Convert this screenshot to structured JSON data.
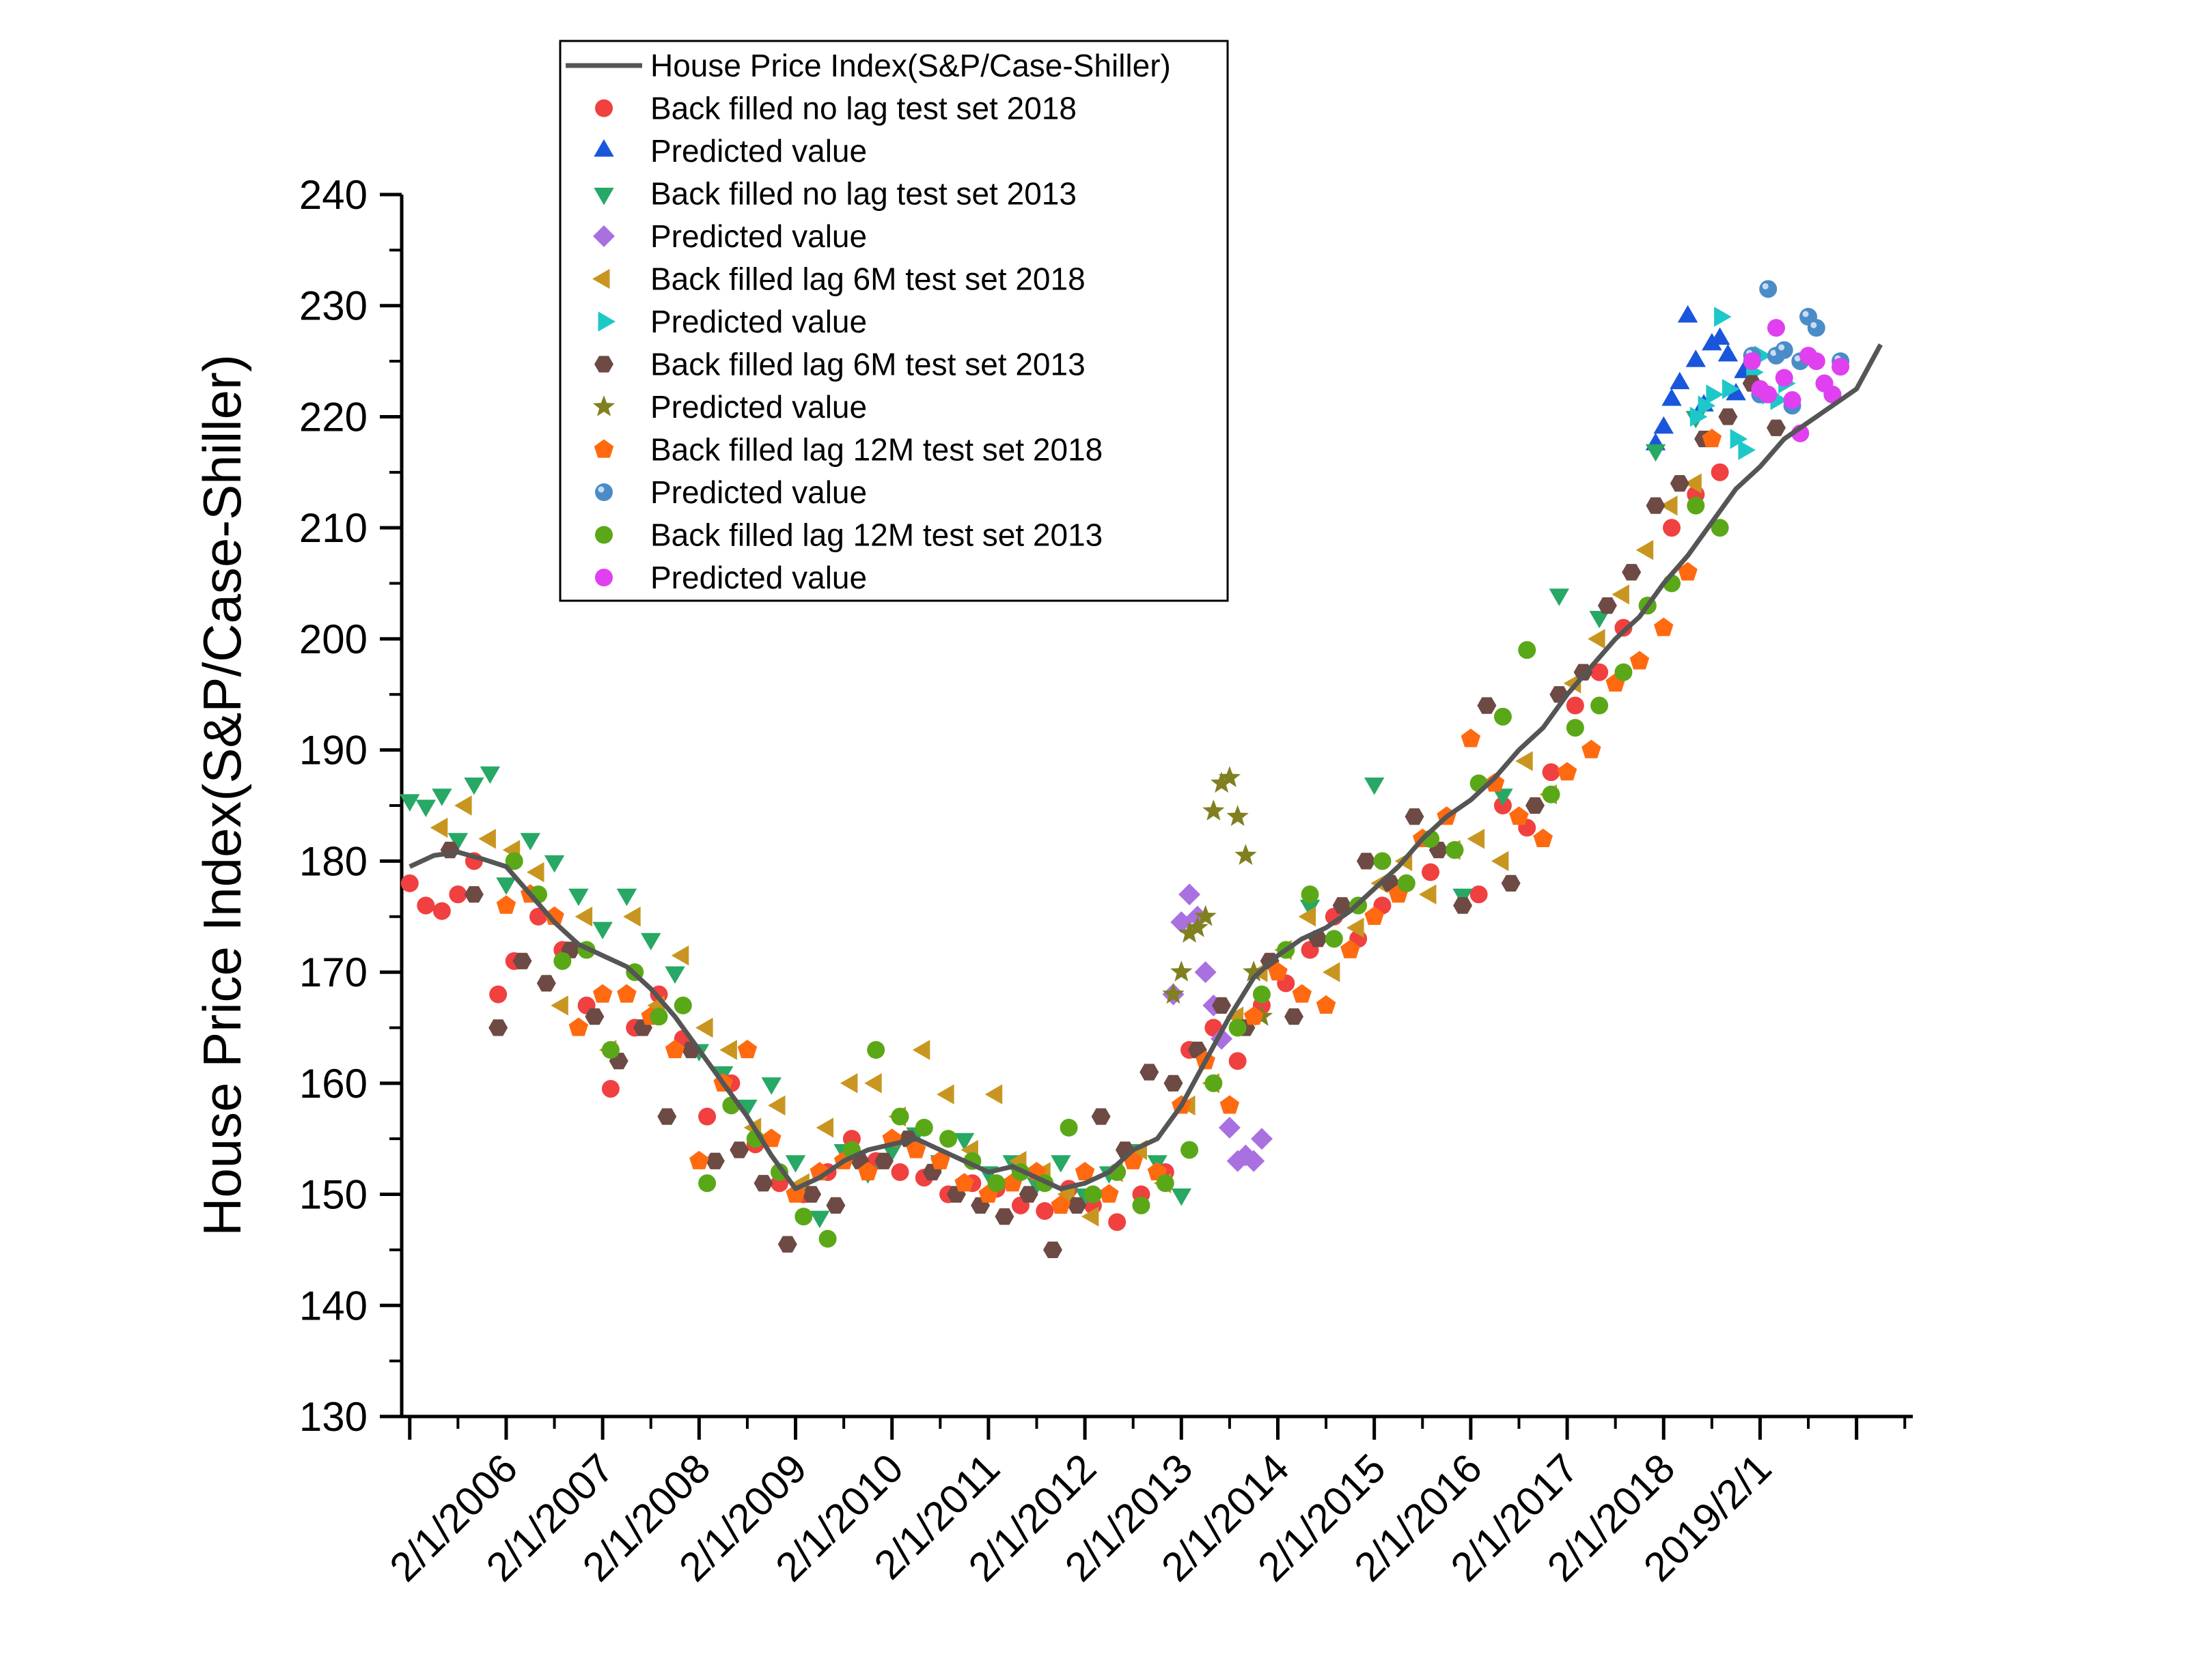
{
  "chart_data": {
    "type": "scatter",
    "title": "",
    "xlabel": "",
    "ylabel": "House Price Index(S&P/Case-Shiller)",
    "ylim": [
      130,
      240
    ],
    "yticks": [
      130,
      140,
      150,
      160,
      170,
      180,
      190,
      200,
      210,
      220,
      230,
      240
    ],
    "xlim": [
      "2005-01",
      "2020-09"
    ],
    "xticks": [
      {
        "date": "2006-02",
        "label": "2/1/2006"
      },
      {
        "date": "2007-02",
        "label": "2/1/2007"
      },
      {
        "date": "2008-02",
        "label": "2/1/2008"
      },
      {
        "date": "2009-02",
        "label": "2/1/2009"
      },
      {
        "date": "2010-02",
        "label": "2/1/2010"
      },
      {
        "date": "2011-02",
        "label": "2/1/2011"
      },
      {
        "date": "2012-02",
        "label": "2/1/2012"
      },
      {
        "date": "2013-02",
        "label": "2/1/2013"
      },
      {
        "date": "2014-02",
        "label": "2/1/2014"
      },
      {
        "date": "2015-02",
        "label": "2/1/2015"
      },
      {
        "date": "2016-02",
        "label": "2/1/2016"
      },
      {
        "date": "2017-02",
        "label": "2/1/2017"
      },
      {
        "date": "2018-02",
        "label": "2/1/2018"
      },
      {
        "date": "2019-02",
        "label": "2019/2/1"
      }
    ],
    "grid": false,
    "legend_position": "top-left",
    "series": [
      {
        "name": "House Price Index(S&P/Case-Shiller)",
        "marker": "line",
        "color": "#555555",
        "x": [
          "2005-02",
          "2005-05",
          "2005-08",
          "2005-11",
          "2006-02",
          "2006-05",
          "2006-08",
          "2006-11",
          "2007-02",
          "2007-05",
          "2007-08",
          "2007-11",
          "2008-02",
          "2008-05",
          "2008-08",
          "2008-11",
          "2009-02",
          "2009-05",
          "2009-08",
          "2009-11",
          "2010-02",
          "2010-05",
          "2010-08",
          "2010-11",
          "2011-02",
          "2011-05",
          "2011-08",
          "2011-11",
          "2012-02",
          "2012-05",
          "2012-08",
          "2012-11",
          "2013-02",
          "2013-05",
          "2013-08",
          "2013-11",
          "2014-02",
          "2014-05",
          "2014-08",
          "2014-11",
          "2015-02",
          "2015-05",
          "2015-08",
          "2015-11",
          "2016-02",
          "2016-05",
          "2016-08",
          "2016-11",
          "2017-02",
          "2017-05",
          "2017-08",
          "2017-11",
          "2018-02",
          "2018-05",
          "2018-08",
          "2018-11",
          "2019-02",
          "2019-05",
          "2019-08",
          "2019-11",
          "2020-02",
          "2020-05"
        ],
        "y": [
          179.5,
          180.5,
          180.8,
          180.2,
          179.5,
          177,
          174.5,
          172.5,
          171.5,
          170.5,
          168.5,
          166,
          163,
          160,
          157,
          153.5,
          150.5,
          151.5,
          153,
          154,
          154.5,
          155,
          154,
          153,
          152,
          152.5,
          151.5,
          150.5,
          151,
          152,
          154,
          155,
          158,
          162,
          166,
          169.5,
          171.5,
          173,
          174,
          175.5,
          177.5,
          179.5,
          182,
          184,
          185.5,
          187.5,
          190,
          192,
          195,
          197.5,
          200,
          202,
          205,
          207.5,
          210.5,
          213.5,
          215.5,
          218,
          219.5,
          221,
          222.5,
          226.5
        ]
      },
      {
        "name": "Back filled no lag test set 2018",
        "marker": "circle",
        "color": "#f04040",
        "x": [
          "2005-02",
          "2005-04",
          "2005-06",
          "2005-08",
          "2005-10",
          "2006-01",
          "2006-03",
          "2006-06",
          "2006-09",
          "2006-12",
          "2007-03",
          "2007-06",
          "2007-09",
          "2007-12",
          "2008-03",
          "2008-06",
          "2008-09",
          "2008-12",
          "2009-03",
          "2009-06",
          "2009-09",
          "2009-12",
          "2010-03",
          "2010-06",
          "2010-09",
          "2010-12",
          "2011-03",
          "2011-06",
          "2011-09",
          "2011-12",
          "2012-03",
          "2012-06",
          "2012-09",
          "2012-12",
          "2013-03",
          "2013-06",
          "2013-09",
          "2013-12",
          "2014-03",
          "2014-06",
          "2014-09",
          "2014-12",
          "2015-03",
          "2015-06",
          "2015-09",
          "2015-12",
          "2016-03",
          "2016-06",
          "2016-09",
          "2016-12",
          "2017-03",
          "2017-06",
          "2017-09",
          "2017-12",
          "2018-03",
          "2018-06",
          "2018-09"
        ],
        "y": [
          178,
          176,
          175.5,
          177,
          180,
          168,
          171,
          175,
          172,
          167,
          159.5,
          165,
          168,
          164,
          157,
          160,
          154.5,
          151,
          150,
          152,
          155,
          153,
          152,
          151.5,
          150,
          151,
          150.5,
          149,
          148.5,
          150.5,
          149,
          147.5,
          150,
          152,
          163,
          165,
          162,
          167,
          169,
          172,
          175,
          173,
          176,
          178,
          179,
          181,
          177,
          185,
          183,
          188,
          194,
          197,
          201,
          203,
          210,
          213,
          215
        ]
      },
      {
        "name": "Predicted value",
        "marker": "triangle-up",
        "color": "#1a56db",
        "x": [
          "2018-01",
          "2018-02",
          "2018-03",
          "2018-04",
          "2018-05",
          "2018-06",
          "2018-07",
          "2018-08",
          "2018-09",
          "2018-10",
          "2018-11",
          "2018-12"
        ],
        "y": [
          217.5,
          219,
          221.5,
          223,
          229,
          225,
          221,
          226.5,
          227,
          225.5,
          222,
          224
        ]
      },
      {
        "name": "Back filled no lag test set 2013",
        "marker": "triangle-down",
        "color": "#27a865",
        "x": [
          "2005-02",
          "2005-04",
          "2005-06",
          "2005-08",
          "2005-10",
          "2005-12",
          "2006-02",
          "2006-05",
          "2006-08",
          "2006-11",
          "2007-02",
          "2007-05",
          "2007-08",
          "2007-11",
          "2008-02",
          "2008-05",
          "2008-08",
          "2008-11",
          "2009-02",
          "2009-05",
          "2009-08",
          "2009-11",
          "2010-02",
          "2010-05",
          "2010-08",
          "2010-11",
          "2011-02",
          "2011-05",
          "2011-08",
          "2011-11",
          "2012-02",
          "2012-05",
          "2012-08",
          "2012-11",
          "2013-02",
          "2014-06",
          "2015-02",
          "2016-01",
          "2016-06",
          "2017-01",
          "2017-06",
          "2018-01",
          "2018-06"
        ],
        "y": [
          185.5,
          185,
          186,
          182,
          187,
          188,
          178,
          182,
          180,
          177,
          174,
          177,
          173,
          170,
          163,
          161,
          158,
          160,
          153,
          148,
          154,
          152,
          154,
          155.5,
          153,
          155,
          152,
          153,
          151,
          153,
          150,
          152,
          154,
          153,
          150,
          176,
          187,
          177,
          186,
          204,
          202,
          217,
          220
        ]
      },
      {
        "name": "Predicted value",
        "marker": "diamond",
        "color": "#a970e0",
        "x": [
          "2013-01",
          "2013-02",
          "2013-03",
          "2013-04",
          "2013-05",
          "2013-06",
          "2013-07",
          "2013-08",
          "2013-09",
          "2013-10",
          "2013-11",
          "2013-12"
        ],
        "y": [
          168,
          174.5,
          177,
          175,
          170,
          167,
          164,
          156,
          153,
          153.5,
          153,
          155
        ]
      },
      {
        "name": "Back filled lag 6M test set 2018",
        "marker": "triangle-left",
        "color": "#c89620",
        "x": [
          "2005-06",
          "2005-09",
          "2005-12",
          "2006-03",
          "2006-06",
          "2006-09",
          "2006-12",
          "2007-03",
          "2007-06",
          "2007-09",
          "2007-12",
          "2008-03",
          "2008-06",
          "2008-09",
          "2008-12",
          "2009-03",
          "2009-06",
          "2009-09",
          "2009-12",
          "2010-03",
          "2010-06",
          "2010-09",
          "2010-12",
          "2011-03",
          "2011-06",
          "2011-09",
          "2011-12",
          "2012-03",
          "2012-06",
          "2012-09",
          "2012-12",
          "2013-03",
          "2013-06",
          "2013-09",
          "2013-12",
          "2014-03",
          "2014-06",
          "2014-09",
          "2014-12",
          "2015-03",
          "2015-06",
          "2015-09",
          "2015-12",
          "2016-03",
          "2016-06",
          "2016-09",
          "2016-12",
          "2017-03",
          "2017-06",
          "2017-09",
          "2017-12",
          "2018-03",
          "2018-06"
        ],
        "y": [
          183,
          185,
          182,
          181,
          179,
          167,
          175,
          163,
          175,
          167,
          171.5,
          165,
          163,
          156,
          158,
          151,
          156,
          160,
          160,
          157,
          163,
          159,
          154,
          159,
          153,
          152,
          150,
          148,
          152,
          154,
          151,
          158,
          160,
          166,
          170,
          172,
          175,
          170,
          174,
          178,
          180,
          177,
          181,
          182,
          180,
          189,
          186,
          196,
          200,
          204,
          208,
          212,
          214
        ]
      },
      {
        "name": "Predicted value",
        "marker": "triangle-right",
        "color": "#1ec8c8",
        "x": [
          "2018-06",
          "2018-07",
          "2018-08",
          "2018-09",
          "2018-10",
          "2018-11",
          "2018-12",
          "2019-01",
          "2019-02",
          "2019-03",
          "2019-04",
          "2019-05"
        ],
        "y": [
          220,
          221,
          222,
          229,
          222.5,
          218,
          217,
          224,
          225.5,
          222,
          221.5,
          223
        ]
      },
      {
        "name": "Back filled lag 6M test set 2013",
        "marker": "hexagon",
        "color": "#6e4a44",
        "x": [
          "2005-07",
          "2005-10",
          "2006-01",
          "2006-04",
          "2006-07",
          "2006-10",
          "2007-01",
          "2007-04",
          "2007-07",
          "2007-10",
          "2008-01",
          "2008-04",
          "2008-07",
          "2008-10",
          "2009-01",
          "2009-04",
          "2009-07",
          "2009-10",
          "2010-01",
          "2010-04",
          "2010-07",
          "2010-10",
          "2011-01",
          "2011-04",
          "2011-07",
          "2011-10",
          "2012-01",
          "2012-04",
          "2012-07",
          "2012-10",
          "2013-01",
          "2013-04",
          "2013-07",
          "2013-10",
          "2014-01",
          "2014-04",
          "2014-07",
          "2014-10",
          "2015-01",
          "2015-04",
          "2015-07",
          "2015-10",
          "2016-01",
          "2016-04",
          "2016-07",
          "2016-10",
          "2017-01",
          "2017-04",
          "2017-07",
          "2017-10",
          "2018-01",
          "2018-04",
          "2018-07",
          "2018-10",
          "2019-01",
          "2019-04"
        ],
        "y": [
          181,
          177,
          165,
          171,
          169,
          172,
          166,
          162,
          165,
          157,
          163,
          153,
          154,
          151,
          145.5,
          150,
          149,
          153,
          153,
          155,
          152,
          150,
          149,
          148,
          150,
          145,
          149,
          157,
          154,
          161,
          160,
          163,
          167,
          165,
          171,
          166,
          173,
          176,
          180,
          178,
          184,
          181,
          176,
          194,
          178,
          185,
          195,
          197,
          203,
          206,
          212,
          214,
          218,
          220,
          223,
          219
        ]
      },
      {
        "name": "Predicted value",
        "marker": "star",
        "color": "#808020",
        "x": [
          "2013-01",
          "2013-02",
          "2013-03",
          "2013-04",
          "2013-05",
          "2013-06",
          "2013-07",
          "2013-08",
          "2013-09",
          "2013-10",
          "2013-11",
          "2013-12"
        ],
        "y": [
          168,
          170,
          173.5,
          174,
          175,
          184.5,
          187,
          187.5,
          184,
          180.5,
          170,
          166
        ]
      },
      {
        "name": "Back filled lag 12M test set 2018",
        "marker": "pentagon",
        "color": "#ff6a10",
        "x": [
          "2006-02",
          "2006-05",
          "2006-08",
          "2006-11",
          "2007-02",
          "2007-05",
          "2007-08",
          "2007-11",
          "2008-02",
          "2008-05",
          "2008-08",
          "2008-11",
          "2009-02",
          "2009-05",
          "2009-08",
          "2009-11",
          "2010-02",
          "2010-05",
          "2010-08",
          "2010-11",
          "2011-02",
          "2011-05",
          "2011-08",
          "2011-11",
          "2012-02",
          "2012-05",
          "2012-08",
          "2012-11",
          "2013-02",
          "2013-05",
          "2013-08",
          "2013-11",
          "2014-02",
          "2014-05",
          "2014-08",
          "2014-11",
          "2015-02",
          "2015-05",
          "2015-08",
          "2015-11",
          "2016-02",
          "2016-05",
          "2016-08",
          "2016-11",
          "2017-02",
          "2017-05",
          "2017-08",
          "2017-11",
          "2018-02",
          "2018-05",
          "2018-08"
        ],
        "y": [
          176,
          177,
          175,
          165,
          168,
          168,
          166,
          163,
          153,
          160,
          163,
          155,
          150,
          152,
          153,
          152,
          155,
          154,
          153,
          151,
          150,
          151,
          152,
          149,
          152,
          150,
          153,
          152,
          158,
          162,
          158,
          166,
          170,
          168,
          167,
          172,
          175,
          177,
          182,
          184,
          191,
          187,
          184,
          182,
          188,
          190,
          196,
          198,
          201,
          206,
          218
        ]
      },
      {
        "name": "Predicted value",
        "marker": "sphere",
        "color": "#4a8cc8",
        "x": [
          "2019-01",
          "2019-02",
          "2019-03",
          "2019-04",
          "2019-05",
          "2019-06",
          "2019-07",
          "2019-08",
          "2019-09",
          "2019-10",
          "2019-11",
          "2019-12"
        ],
        "y": [
          225.5,
          222,
          231.5,
          225.5,
          226,
          221,
          225,
          229,
          228,
          223,
          222,
          225
        ]
      },
      {
        "name": "Back filled lag 12M test set 2013",
        "marker": "circle",
        "color": "#5aa818",
        "x": [
          "2006-03",
          "2006-06",
          "2006-09",
          "2006-12",
          "2007-03",
          "2007-06",
          "2007-09",
          "2007-12",
          "2008-03",
          "2008-06",
          "2008-09",
          "2008-12",
          "2009-03",
          "2009-06",
          "2009-09",
          "2009-12",
          "2010-03",
          "2010-06",
          "2010-09",
          "2010-12",
          "2011-03",
          "2011-06",
          "2011-09",
          "2011-12",
          "2012-03",
          "2012-06",
          "2012-09",
          "2012-12",
          "2013-03",
          "2013-06",
          "2013-09",
          "2013-12",
          "2014-03",
          "2014-06",
          "2014-09",
          "2014-12",
          "2015-03",
          "2015-06",
          "2015-09",
          "2015-12",
          "2016-03",
          "2016-06",
          "2016-09",
          "2016-12",
          "2017-03",
          "2017-06",
          "2017-09",
          "2017-12",
          "2018-03",
          "2018-06",
          "2018-09"
        ],
        "y": [
          180,
          177,
          171,
          172,
          163,
          170,
          166,
          167,
          151,
          158,
          155,
          152,
          148,
          146,
          154,
          163,
          157,
          156,
          155,
          153,
          151,
          152,
          151,
          156,
          150,
          152,
          149,
          151,
          154,
          160,
          165,
          168,
          172,
          177,
          173,
          176,
          180,
          178,
          182,
          181,
          187,
          193,
          199,
          186,
          192,
          194,
          197,
          203,
          205,
          212,
          210
        ]
      },
      {
        "name": "Predicted value",
        "marker": "circle",
        "color": "#e040f0",
        "x": [
          "2019-01",
          "2019-02",
          "2019-03",
          "2019-04",
          "2019-05",
          "2019-06",
          "2019-07",
          "2019-08",
          "2019-09",
          "2019-10",
          "2019-11",
          "2019-12"
        ],
        "y": [
          225,
          222.5,
          222,
          228,
          223.5,
          221.5,
          218.5,
          225.5,
          225,
          223,
          222,
          224.5
        ]
      }
    ]
  }
}
